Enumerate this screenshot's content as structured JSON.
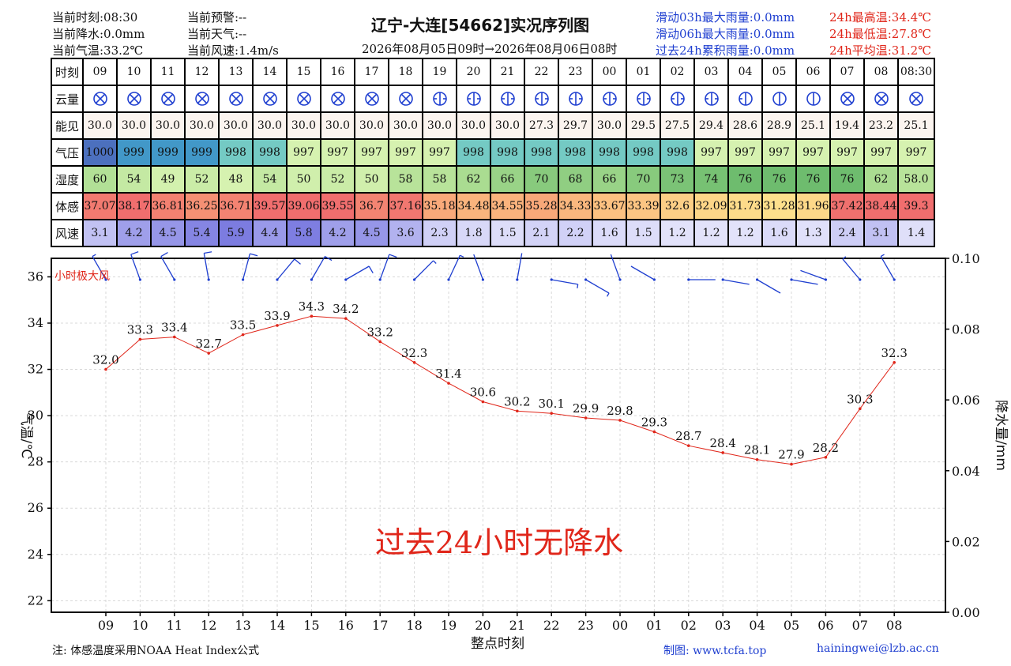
{
  "header": {
    "current_time": "当前时刻:08:30",
    "current_precip": "当前降水:0.0mm",
    "current_temp": "当前气温:33.2℃",
    "current_warning": "当前预警:--",
    "current_weather": "当前天气:--",
    "current_wind": "当前风速:1.4m/s",
    "title": "辽宁-大连[54662]实况序列图",
    "subtitle": "2026年08月05日09时→2026年08月06日08时",
    "rain_3h": "滑动03h最大雨量:0.0mm",
    "rain_6h": "滑动06h最大雨量:0.0mm",
    "rain_24h": "过去24h累积雨量:0.0mm",
    "max_temp": "24h最高温:34.4℃",
    "min_temp": "24h最低温:27.8℃",
    "avg_temp": "24h平均温:31.2℃"
  },
  "table": {
    "row_labels": [
      "时刻",
      "云量",
      "能见",
      "气压",
      "湿度",
      "体感",
      "风速"
    ],
    "times": [
      "09",
      "10",
      "11",
      "12",
      "13",
      "14",
      "15",
      "16",
      "17",
      "18",
      "19",
      "20",
      "21",
      "22",
      "23",
      "00",
      "01",
      "02",
      "03",
      "04",
      "05",
      "06",
      "07",
      "08",
      "08:30"
    ],
    "cloud_cover": [
      8,
      8,
      8,
      8,
      8,
      8,
      8,
      8,
      8,
      8,
      5,
      5,
      5,
      5,
      5,
      5,
      5,
      4,
      3,
      2,
      1,
      1,
      8,
      8,
      8
    ],
    "visibility": [
      "30.0",
      "30.0",
      "30.0",
      "30.0",
      "30.0",
      "30.0",
      "30.0",
      "30.0",
      "30.0",
      "30.0",
      "30.0",
      "30.0",
      "30.0",
      "27.3",
      "29.7",
      "30.0",
      "29.5",
      "27.5",
      "29.4",
      "28.6",
      "28.9",
      "25.1",
      "19.4",
      "23.2",
      "25.1"
    ],
    "pressure": [
      "1000",
      "999",
      "999",
      "999",
      "998",
      "998",
      "997",
      "997",
      "997",
      "997",
      "997",
      "998",
      "998",
      "998",
      "998",
      "998",
      "998",
      "998",
      "997",
      "997",
      "997",
      "997",
      "997",
      "997",
      "997"
    ],
    "humidity": [
      "60",
      "54",
      "49",
      "52",
      "48",
      "54",
      "50",
      "52",
      "50",
      "58",
      "58",
      "62",
      "66",
      "70",
      "68",
      "66",
      "70",
      "73",
      "74",
      "76",
      "76",
      "76",
      "76",
      "62",
      "58.0"
    ],
    "feels_like": [
      "37.07",
      "38.17",
      "36.81",
      "36.25",
      "36.71",
      "39.57",
      "39.06",
      "39.55",
      "36.7",
      "37.16",
      "35.18",
      "34.48",
      "34.55",
      "35.28",
      "34.33",
      "33.67",
      "33.39",
      "32.6",
      "32.09",
      "31.73",
      "31.28",
      "31.96",
      "37.42",
      "38.44",
      "39.3"
    ],
    "wind_speed": [
      "3.1",
      "4.2",
      "4.5",
      "5.4",
      "5.9",
      "4.4",
      "5.8",
      "4.2",
      "4.5",
      "3.6",
      "2.3",
      "1.8",
      "1.5",
      "2.1",
      "2.2",
      "1.6",
      "1.5",
      "1.2",
      "1.2",
      "1.2",
      "1.6",
      "1.3",
      "2.4",
      "3.1",
      "1.4"
    ]
  },
  "chart_data": {
    "type": "line",
    "x": [
      "09",
      "10",
      "11",
      "12",
      "13",
      "14",
      "15",
      "16",
      "17",
      "18",
      "19",
      "20",
      "21",
      "22",
      "23",
      "00",
      "01",
      "02",
      "03",
      "04",
      "05",
      "06",
      "07",
      "08"
    ],
    "series": [
      {
        "values": [
          32.0,
          33.3,
          33.4,
          32.7,
          33.5,
          33.9,
          34.3,
          34.2,
          33.2,
          32.3,
          31.4,
          30.6,
          30.2,
          30.1,
          29.9,
          29.8,
          29.3,
          28.7,
          28.4,
          28.1,
          27.9,
          28.2,
          30.3,
          32.3
        ],
        "color": "#e0261a"
      }
    ],
    "wind_directions_deg": [
      330,
      340,
      330,
      350,
      15,
      40,
      30,
      60,
      20,
      45,
      25,
      340,
      10,
      100,
      120,
      340,
      300,
      90,
      100,
      120,
      100,
      290,
      320,
      330
    ],
    "xlabel": "整点时刻",
    "ylabel": "气温/℃",
    "y2label": "降水量/mm",
    "ylim": [
      21.5,
      36.8
    ],
    "y2lim": [
      0,
      0.1
    ],
    "yticks": [
      22,
      24,
      26,
      28,
      30,
      32,
      34,
      36
    ],
    "y2ticks": [
      "0.00",
      "0.02",
      "0.04",
      "0.06",
      "0.08",
      "0.10"
    ],
    "grid": true,
    "wind_label": "小时极大风",
    "no_precip_annotation": "过去24小时无降水"
  },
  "footer": {
    "note": "注: 体感温度采用NOAA Heat Index公式",
    "credit": "制图: www.tcfa.top",
    "email": "hainingwei@lzb.ac.cn"
  },
  "colors": {
    "red": "#e0261a",
    "blue": "#1f3fd0",
    "wind_barb": "#1f3fd0"
  }
}
